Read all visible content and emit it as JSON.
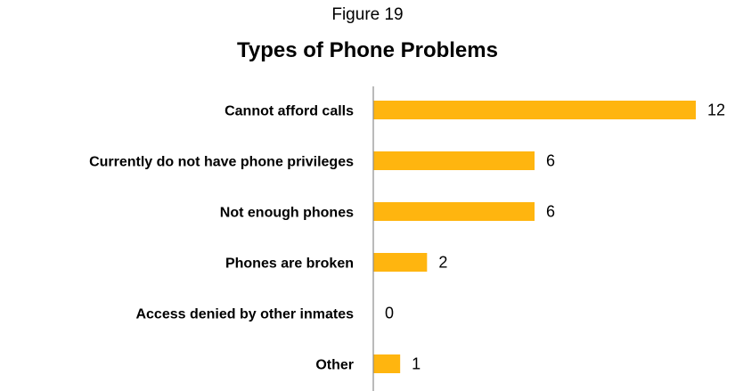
{
  "figure_label": "Figure 19",
  "chart_data": {
    "type": "bar",
    "orientation": "horizontal",
    "title": "Types of Phone Problems",
    "categories": [
      "Cannot afford calls",
      "Currently do not have phone privileges",
      "Not enough phones",
      "Phones are broken",
      "Access denied by other inmates",
      "Other"
    ],
    "values": [
      12,
      6,
      6,
      2,
      0,
      1
    ],
    "bar_color": "#FFB50F",
    "data_labels": true,
    "grid": false,
    "xlim": [
      0,
      12
    ]
  }
}
